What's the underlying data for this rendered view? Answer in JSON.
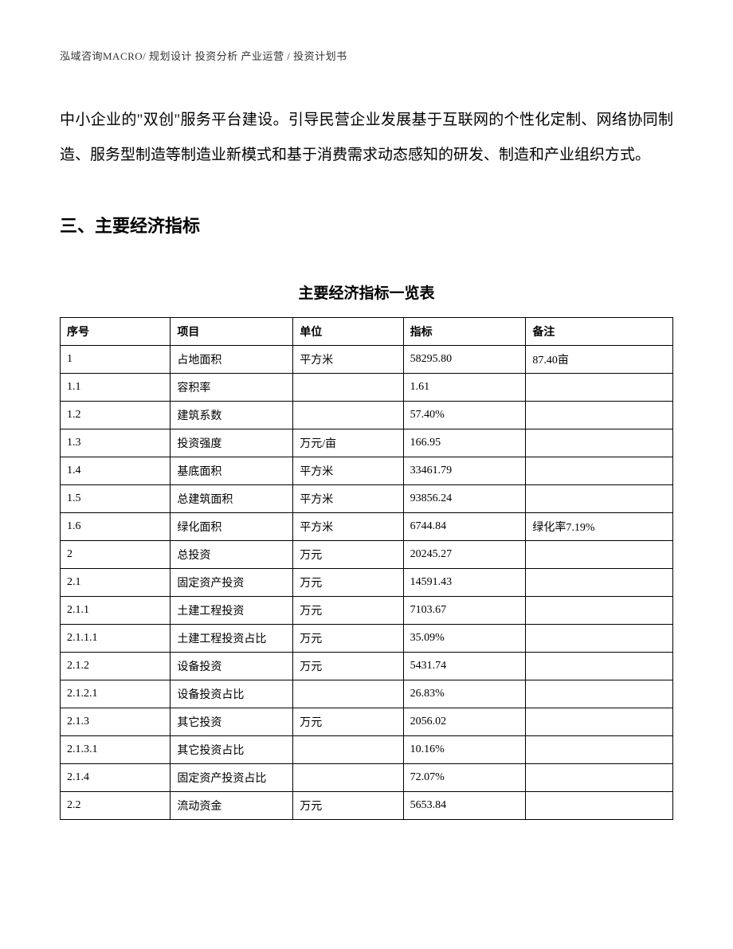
{
  "header": "泓域咨询MACRO/ 规划设计  投资分析  产业运营 / 投资计划书",
  "body_paragraph": "中小企业的\"双创\"服务平台建设。引导民营企业发展基于互联网的个性化定制、网络协同制造、服务型制造等制造业新模式和基于消费需求动态感知的研发、制造和产业组织方式。",
  "section_heading": "三、主要经济指标",
  "table_title": "主要经济指标一览表",
  "table": {
    "columns": [
      "序号",
      "项目",
      "单位",
      "指标",
      "备注"
    ],
    "rows": [
      [
        "1",
        "占地面积",
        "平方米",
        "58295.80",
        "87.40亩"
      ],
      [
        "1.1",
        "容积率",
        "",
        "1.61",
        ""
      ],
      [
        "1.2",
        "建筑系数",
        "",
        "57.40%",
        ""
      ],
      [
        "1.3",
        "投资强度",
        "万元/亩",
        "166.95",
        ""
      ],
      [
        "1.4",
        "基底面积",
        "平方米",
        "33461.79",
        ""
      ],
      [
        "1.5",
        "总建筑面积",
        "平方米",
        "93856.24",
        ""
      ],
      [
        "1.6",
        "绿化面积",
        "平方米",
        "6744.84",
        "绿化率7.19%"
      ],
      [
        "2",
        "总投资",
        "万元",
        "20245.27",
        ""
      ],
      [
        "2.1",
        "固定资产投资",
        "万元",
        "14591.43",
        ""
      ],
      [
        "2.1.1",
        "土建工程投资",
        "万元",
        "7103.67",
        ""
      ],
      [
        "2.1.1.1",
        "土建工程投资占比",
        "万元",
        "35.09%",
        ""
      ],
      [
        "2.1.2",
        "设备投资",
        "万元",
        "5431.74",
        ""
      ],
      [
        "2.1.2.1",
        "设备投资占比",
        "",
        "26.83%",
        ""
      ],
      [
        "2.1.3",
        "其它投资",
        "万元",
        "2056.02",
        ""
      ],
      [
        "2.1.3.1",
        "其它投资占比",
        "",
        "10.16%",
        ""
      ],
      [
        "2.1.4",
        "固定资产投资占比",
        "",
        "72.07%",
        ""
      ],
      [
        "2.2",
        "流动资金",
        "万元",
        "5653.84",
        ""
      ]
    ]
  }
}
